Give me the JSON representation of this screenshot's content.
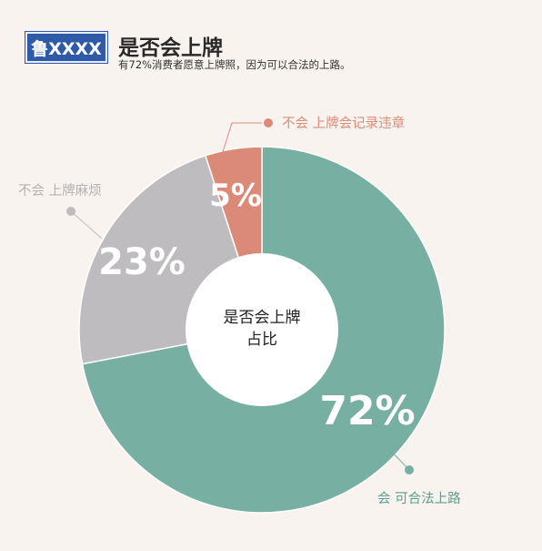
{
  "header": {
    "plate_text": "鲁XXXX",
    "title": "是否会上牌",
    "subtitle": "有72%消费者愿意上牌照，因为可以合法的上路。"
  },
  "chart_data": {
    "type": "pie",
    "title": "是否会上牌",
    "center_label": [
      "是否会上牌",
      "占比"
    ],
    "slices": [
      {
        "label": "会  可合法上路",
        "value": 72,
        "display": "72%",
        "color": "#77b0a3"
      },
      {
        "label": "不会  上牌麻烦",
        "value": 23,
        "display": "23%",
        "color": "#bebcbe"
      },
      {
        "label": "不会  上牌会记录违章",
        "value": 5,
        "display": "5%",
        "color": "#dc8a78"
      }
    ]
  }
}
